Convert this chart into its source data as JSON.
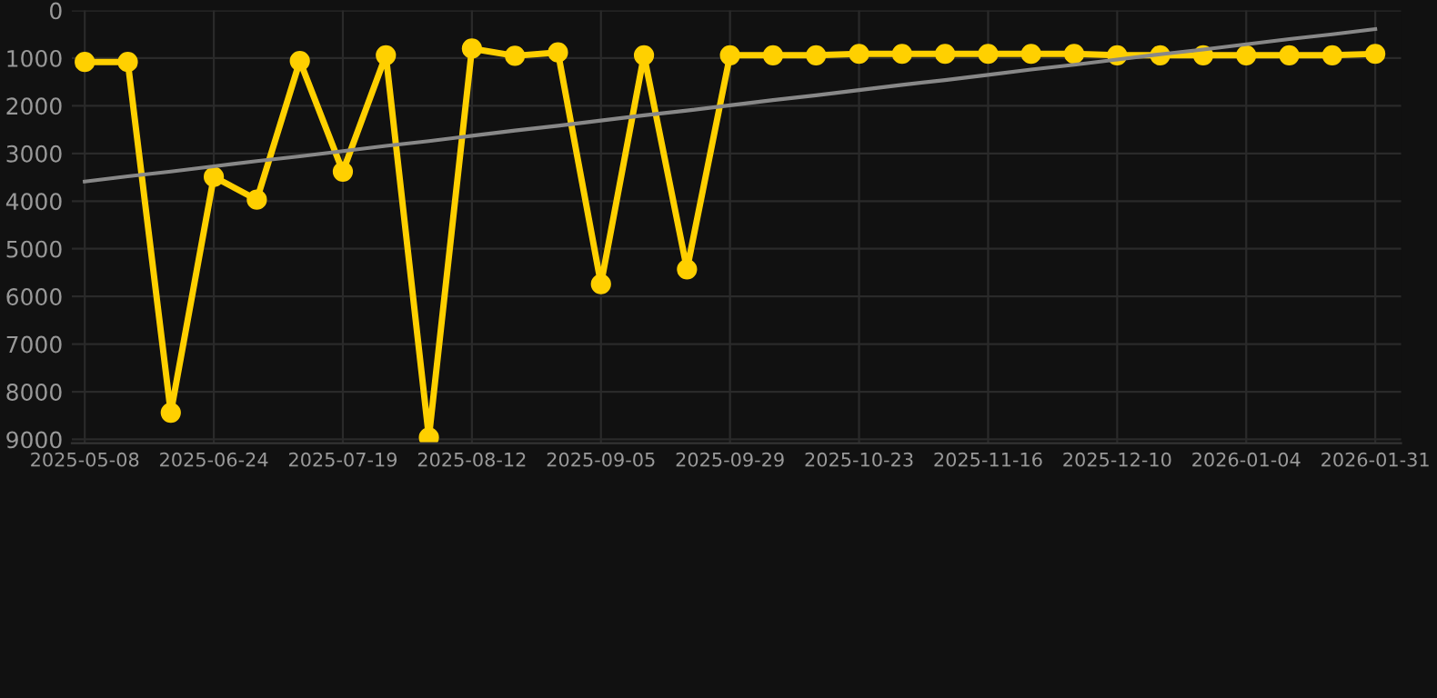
{
  "chart_data": {
    "type": "line",
    "categories": [
      "2025-05-08",
      null,
      null,
      "2025-06-24",
      null,
      null,
      "2025-07-19",
      null,
      null,
      "2025-08-12",
      null,
      null,
      "2025-09-05",
      null,
      null,
      "2025-09-29",
      null,
      null,
      "2025-10-23",
      null,
      null,
      "2025-11-16",
      null,
      null,
      "2025-12-10",
      null,
      null,
      "2026-01-04",
      null,
      null,
      "2026-01-31"
    ],
    "series": [
      {
        "color": "#ffd000",
        "marker": "circle",
        "values": [
          1080,
          1080,
          8440,
          3490,
          3970,
          1060,
          3380,
          940,
          8960,
          800,
          950,
          880,
          5740,
          940,
          5430,
          940,
          940,
          940,
          910,
          910,
          910,
          910,
          910,
          910,
          940,
          940,
          940,
          940,
          940,
          940,
          910
        ]
      },
      {
        "type": "line",
        "color": "#888888",
        "marker": "none",
        "values": [
          3590,
          3480,
          3380,
          3270,
          3160,
          3060,
          2950,
          2840,
          2740,
          2630,
          2520,
          2420,
          2310,
          2200,
          2100,
          1990,
          1880,
          1780,
          1670,
          1560,
          1460,
          1350,
          1240,
          1140,
          1030,
          920,
          820,
          710,
          600,
          500,
          390
        ]
      }
    ],
    "ylim": [
      9080,
      0
    ],
    "yticks": [
      0,
      1000,
      2000,
      3000,
      4000,
      5000,
      6000,
      7000,
      8000,
      9000
    ],
    "grid": true,
    "legend": false,
    "line_style": "solid"
  }
}
